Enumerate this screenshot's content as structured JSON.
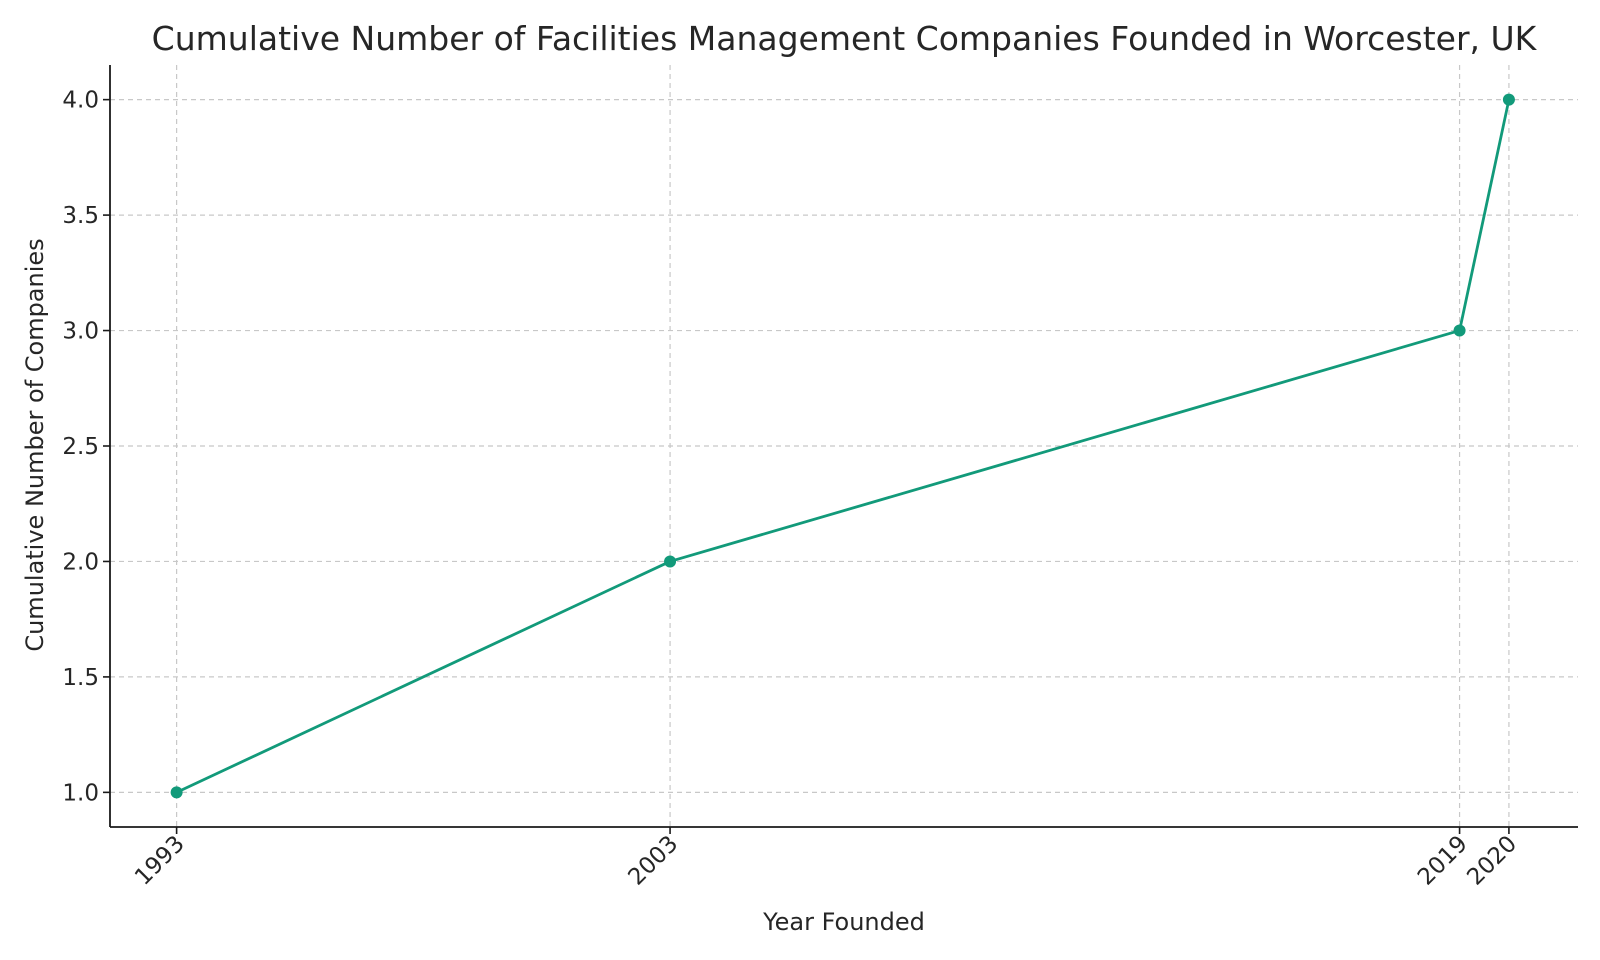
{
  "colors": {
    "series": "#129a7a",
    "grid": "#c8c8c8",
    "axis": "#1a1a1a",
    "text": "#262626"
  },
  "chart_data": {
    "type": "line",
    "title": "Cumulative Number of Facilities Management Companies Founded in Worcester, UK",
    "xlabel": "Year Founded",
    "ylabel": "Cumulative Number of Companies",
    "x": [
      1993,
      2003,
      2019,
      2020
    ],
    "x_tick_labels": [
      "1993",
      "2003",
      "2019",
      "2020"
    ],
    "y_ticks": [
      1.0,
      1.5,
      2.0,
      2.5,
      3.0,
      3.5,
      4.0
    ],
    "y_tick_labels": [
      "1.0",
      "1.5",
      "2.0",
      "2.5",
      "3.0",
      "3.5",
      "4.0"
    ],
    "series": [
      {
        "values": [
          1,
          2,
          3,
          4
        ],
        "marker": "circle"
      }
    ],
    "xlim": [
      1991.65,
      2021.4
    ],
    "ylim": [
      0.85,
      4.15
    ],
    "grid": true,
    "x_tick_rotation": 45,
    "legend": "none"
  }
}
